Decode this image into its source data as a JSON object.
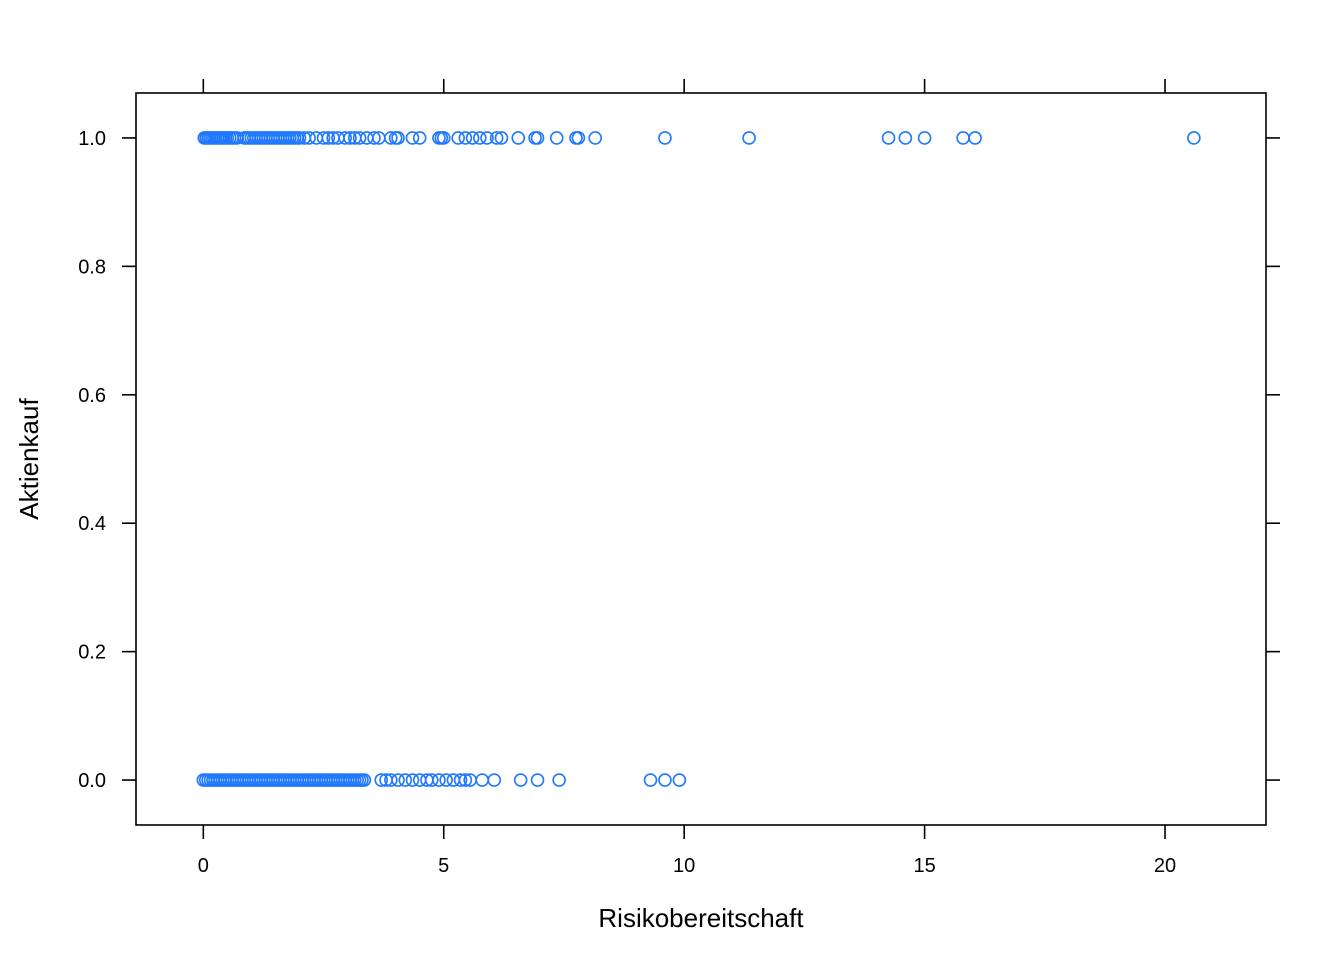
{
  "chart_data": {
    "type": "scatter",
    "title": "",
    "xlabel": "Risikobereitschaft",
    "ylabel": "Aktienkauf",
    "xlim": [
      -1.4,
      22.1
    ],
    "ylim": [
      -0.07,
      1.07
    ],
    "x_ticks": [
      0,
      5,
      10,
      15,
      20
    ],
    "x_tick_labels": [
      "0",
      "5",
      "10",
      "15",
      "20"
    ],
    "y_ticks": [
      0.0,
      0.2,
      0.4,
      0.6,
      0.8,
      1.0
    ],
    "y_tick_labels": [
      "0.0",
      "0.2",
      "0.4",
      "0.6",
      "0.8",
      "1.0"
    ],
    "grid": false,
    "marker": "open-circle",
    "point_color": "#1f78ff",
    "series": [
      {
        "values_y": 1.0,
        "x": [
          0.02,
          0.06,
          0.1,
          0.14,
          0.18,
          0.22,
          0.26,
          0.3,
          0.34,
          0.38,
          0.42,
          0.46,
          0.5,
          0.55,
          0.6,
          0.65,
          0.7,
          0.85,
          0.9,
          0.95,
          1.0,
          1.05,
          1.1,
          1.15,
          1.2,
          1.25,
          1.3,
          1.35,
          1.4,
          1.45,
          1.5,
          1.55,
          1.6,
          1.65,
          1.7,
          1.75,
          1.8,
          1.85,
          1.9,
          1.95,
          2.0,
          2.1,
          2.2,
          2.35,
          2.5,
          2.6,
          2.7,
          2.8,
          2.95,
          3.05,
          3.15,
          3.25,
          3.4,
          3.55,
          3.65,
          3.9,
          4.0,
          4.05,
          4.35,
          4.5,
          4.9,
          4.95,
          5.0,
          5.3,
          5.45,
          5.6,
          5.75,
          5.9,
          6.1,
          6.2,
          6.55,
          6.9,
          6.95,
          7.35,
          7.75,
          7.8,
          8.15,
          9.6,
          11.35,
          14.25,
          14.6,
          15.0,
          15.8,
          16.05,
          20.6
        ]
      },
      {
        "values_y": 0.0,
        "x": [
          0.0,
          0.05,
          0.1,
          0.15,
          0.2,
          0.25,
          0.3,
          0.35,
          0.4,
          0.45,
          0.5,
          0.55,
          0.6,
          0.65,
          0.7,
          0.75,
          0.8,
          0.85,
          0.9,
          0.95,
          1.0,
          1.05,
          1.1,
          1.15,
          1.2,
          1.25,
          1.3,
          1.35,
          1.4,
          1.45,
          1.5,
          1.55,
          1.6,
          1.65,
          1.7,
          1.75,
          1.8,
          1.85,
          1.9,
          1.95,
          2.0,
          2.05,
          2.1,
          2.15,
          2.2,
          2.25,
          2.3,
          2.35,
          2.4,
          2.45,
          2.5,
          2.55,
          2.6,
          2.65,
          2.7,
          2.75,
          2.8,
          2.85,
          2.9,
          2.95,
          3.0,
          3.05,
          3.1,
          3.15,
          3.2,
          3.25,
          3.3,
          3.35,
          3.7,
          3.8,
          3.9,
          4.05,
          4.2,
          4.35,
          4.5,
          4.65,
          4.75,
          4.9,
          5.05,
          5.2,
          5.35,
          5.45,
          5.55,
          5.8,
          6.05,
          6.6,
          6.95,
          7.4,
          9.3,
          9.6,
          9.9
        ]
      }
    ]
  }
}
